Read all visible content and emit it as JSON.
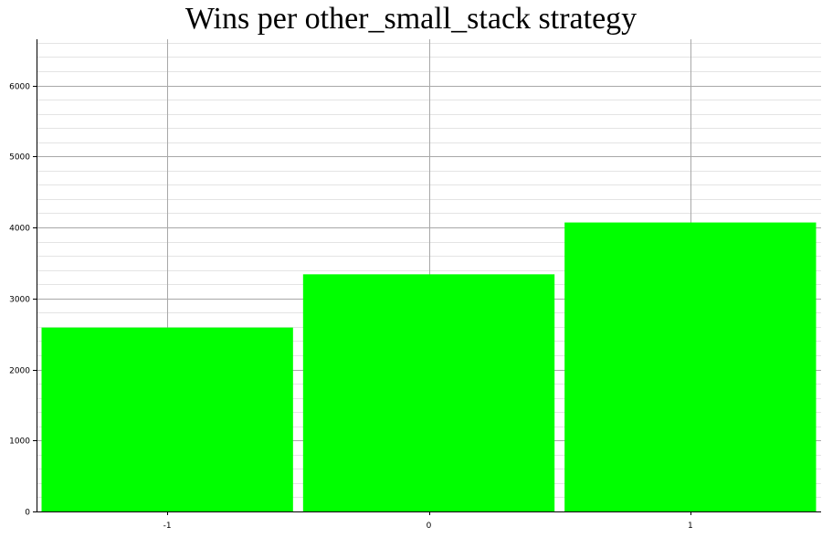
{
  "chart_data": {
    "type": "bar",
    "title": "Wins per other_small_stack strategy",
    "xlabel": "",
    "ylabel": "",
    "categories": [
      "-1",
      "0",
      "1"
    ],
    "values": [
      2590,
      3340,
      4070
    ],
    "ylim": [
      0,
      6650
    ],
    "y_ticks": [
      "0",
      "1000",
      "2000",
      "3000",
      "4000",
      "5000",
      "6000"
    ],
    "grid": true,
    "bar_color": "#00ff00"
  }
}
